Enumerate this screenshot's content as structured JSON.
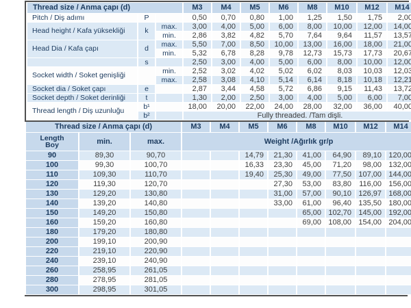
{
  "colors": {
    "header_blue": "#c7d9ec",
    "row_stripe_blue": "#dce9f5",
    "text_navy": "#1b3a5e",
    "text_dark": "#3d3d3d",
    "border_dark": "#4f4f4f"
  },
  "table1": {
    "title": "Thread size / Anma çapı (d)",
    "columns": [
      "M3",
      "M4",
      "M5",
      "M6",
      "M8",
      "M10",
      "M12",
      "M14"
    ],
    "rows": [
      {
        "label": "Pitch / Diş adımı",
        "symbol": "P",
        "lines": [
          {
            "sub": "",
            "values": [
              "0,50",
              "0,70",
              "0,80",
              "1,00",
              "1,25",
              "1,50",
              "1,75",
              "2,00"
            ]
          }
        ]
      },
      {
        "label": "Head height / Kafa yüksekliği",
        "symbol": "k",
        "lines": [
          {
            "sub": "max.",
            "values": [
              "3,00",
              "4,00",
              "5,00",
              "6,00",
              "8,00",
              "10,00",
              "12,00",
              "14,00"
            ]
          },
          {
            "sub": "min.",
            "values": [
              "2,86",
              "3,82",
              "4,82",
              "5,70",
              "7,64",
              "9,64",
              "11,57",
              "13,57"
            ]
          }
        ]
      },
      {
        "label": "Head Dia / Kafa çapı",
        "symbol": "d",
        "lines": [
          {
            "sub": "max.",
            "values": [
              "5,50",
              "7,00",
              "8,50",
              "10,00",
              "13,00",
              "16,00",
              "18,00",
              "21,00"
            ]
          },
          {
            "sub": "min.",
            "values": [
              "5,32",
              "6,78",
              "8,28",
              "9,78",
              "12,73",
              "15,73",
              "17,73",
              "20,67"
            ]
          }
        ]
      },
      {
        "label": "",
        "symbol": "s",
        "lines": [
          {
            "sub": "",
            "values": [
              "2,50",
              "3,00",
              "4,00",
              "5,00",
              "6,00",
              "8,00",
              "10,00",
              "12,00"
            ]
          }
        ]
      },
      {
        "label": "Socket width / Soket genişliği",
        "symbol": "",
        "lines": [
          {
            "sub": "min.",
            "values": [
              "2,52",
              "3,02",
              "4,02",
              "5,02",
              "6,02",
              "8,03",
              "10,03",
              "12,03"
            ]
          },
          {
            "sub": "max.",
            "values": [
              "2,58",
              "3,08",
              "4,10",
              "5,14",
              "6,14",
              "8,18",
              "10,18",
              "12,21"
            ]
          }
        ]
      },
      {
        "label": "Socket dia / Soket çapı",
        "symbol": "e",
        "lines": [
          {
            "sub": "",
            "values": [
              "2,87",
              "3,44",
              "4,58",
              "5,72",
              "6,86",
              "9,15",
              "11,43",
              "13,72"
            ]
          }
        ]
      },
      {
        "label": "Socket depth / Soket derinliği",
        "symbol": "t",
        "lines": [
          {
            "sub": "",
            "values": [
              "1,30",
              "2,00",
              "2,50",
              "3,00",
              "4,00",
              "5,00",
              "6,00",
              "7,00"
            ]
          }
        ]
      },
      {
        "label": "Thread length / Diş uzunluğu",
        "symbol": null,
        "lines": [
          {
            "sym": "b¹",
            "values": [
              "18,00",
              "20,00",
              "22,00",
              "24,00",
              "28,00",
              "32,00",
              "36,00",
              "40,00"
            ]
          },
          {
            "sym": "b²",
            "span": "Fully threaded. /Tam dişli."
          }
        ]
      }
    ]
  },
  "table2": {
    "title": "Thread size / Anma çapı (d)",
    "columns": [
      "M3",
      "M4",
      "M5",
      "M6",
      "M8",
      "M10",
      "M12",
      "M14"
    ],
    "length_header_en": "Length",
    "length_header_tr": "Boy",
    "min_header": "min.",
    "max_header": "max.",
    "weight_header": "Weight /Ağırlık gr/p",
    "rows": [
      {
        "length": "90",
        "min": "89,30",
        "max": "90,70",
        "weights": [
          "",
          "",
          "14,79",
          "21,30",
          "41,00",
          "64,90",
          "89,10",
          "120,00"
        ]
      },
      {
        "length": "100",
        "min": "99,30",
        "max": "100,70",
        "weights": [
          "",
          "",
          "16,33",
          "23,30",
          "45,00",
          "71,20",
          "98,00",
          "132,00"
        ]
      },
      {
        "length": "110",
        "min": "109,30",
        "max": "110,70",
        "weights": [
          "",
          "",
          "19,40",
          "25,30",
          "49,00",
          "77,50",
          "107,00",
          "144,00"
        ]
      },
      {
        "length": "120",
        "min": "119,30",
        "max": "120,70",
        "weights": [
          "",
          "",
          "",
          "27,30",
          "53,00",
          "83,80",
          "116,00",
          "156,00"
        ]
      },
      {
        "length": "130",
        "min": "129,20",
        "max": "130,80",
        "weights": [
          "",
          "",
          "",
          "31,00",
          "57,00",
          "90,10",
          "126,97",
          "168,00"
        ]
      },
      {
        "length": "140",
        "min": "139,20",
        "max": "140,80",
        "weights": [
          "",
          "",
          "",
          "33,00",
          "61,00",
          "96,40",
          "135,50",
          "180,00"
        ]
      },
      {
        "length": "150",
        "min": "149,20",
        "max": "150,80",
        "weights": [
          "",
          "",
          "",
          "",
          "65,00",
          "102,70",
          "145,00",
          "192,00"
        ]
      },
      {
        "length": "160",
        "min": "159,20",
        "max": "160,80",
        "weights": [
          "",
          "",
          "",
          "",
          "69,00",
          "108,00",
          "154,00",
          "204,00"
        ]
      },
      {
        "length": "180",
        "min": "179,20",
        "max": "180,80",
        "weights": [
          "",
          "",
          "",
          "",
          "",
          "",
          "",
          ""
        ]
      },
      {
        "length": "200",
        "min": "199,10",
        "max": "200,90",
        "weights": [
          "",
          "",
          "",
          "",
          "",
          "",
          "",
          ""
        ]
      },
      {
        "length": "220",
        "min": "219,10",
        "max": "220,90",
        "weights": [
          "",
          "",
          "",
          "",
          "",
          "",
          "",
          ""
        ]
      },
      {
        "length": "240",
        "min": "239,10",
        "max": "240,90",
        "weights": [
          "",
          "",
          "",
          "",
          "",
          "",
          "",
          ""
        ]
      },
      {
        "length": "260",
        "min": "258,95",
        "max": "261,05",
        "weights": [
          "",
          "",
          "",
          "",
          "",
          "",
          "",
          ""
        ]
      },
      {
        "length": "280",
        "min": "278,95",
        "max": "281,05",
        "weights": [
          "",
          "",
          "",
          "",
          "",
          "",
          "",
          ""
        ]
      },
      {
        "length": "300",
        "min": "298,95",
        "max": "301,05",
        "weights": [
          "",
          "",
          "",
          "",
          "",
          "",
          "",
          ""
        ]
      }
    ]
  }
}
